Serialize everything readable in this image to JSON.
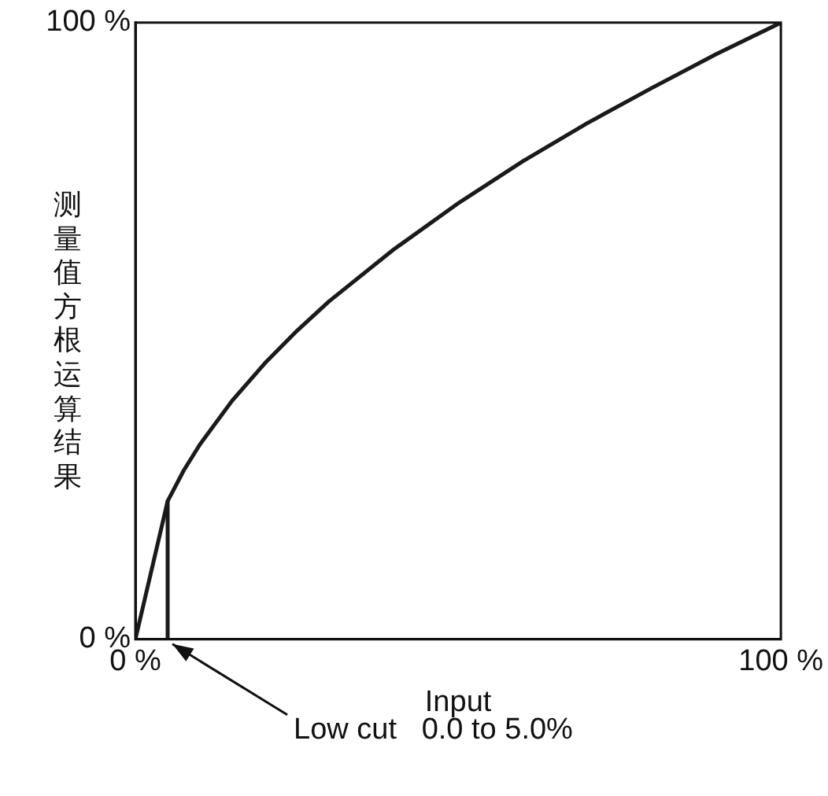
{
  "chart_data": {
    "type": "line",
    "xlabel": "Input",
    "ylabel": "测量值方根运算结果",
    "xlim": [
      0,
      100
    ],
    "ylim": [
      0,
      100
    ],
    "xticks": [
      {
        "value": 0,
        "label": "0 %"
      },
      {
        "value": 100,
        "label": "100 %"
      }
    ],
    "yticks": [
      {
        "value": 0,
        "label": "0 %"
      },
      {
        "value": 100,
        "label": "100 %"
      }
    ],
    "legend": false,
    "marker": "none",
    "line_style": "solid",
    "series": [
      {
        "color": "#1a1a1a",
        "x": [
          0,
          5,
          7.5,
          10,
          15,
          20,
          25,
          30,
          40,
          50,
          60,
          70,
          80,
          90,
          100
        ],
        "values": [
          0,
          22.4,
          27.4,
          31.6,
          38.7,
          44.7,
          50,
          54.8,
          63.2,
          70.7,
          77.5,
          83.7,
          89.4,
          94.9,
          100
        ]
      },
      {
        "color": "#1a1a1a",
        "x": [
          5,
          5
        ],
        "values": [
          0,
          22.4
        ]
      }
    ],
    "annotations": [
      {
        "text": "Low cut   0.0 to 5.0%",
        "x": 5,
        "y": 0
      }
    ]
  }
}
